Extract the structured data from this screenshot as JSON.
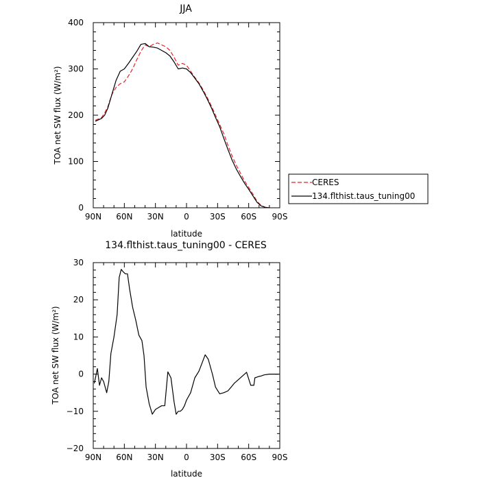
{
  "chart_data": [
    {
      "type": "line",
      "title": "JJA",
      "xlabel": "latitude",
      "ylabel": "TOA net SW flux (W/m²)",
      "xlim": [
        90,
        -90
      ],
      "ylim": [
        0,
        400
      ],
      "x_ticks": [
        90,
        60,
        30,
        0,
        -30,
        -60,
        -90
      ],
      "x_tick_labels": [
        "90N",
        "60N",
        "30N",
        "0",
        "30S",
        "60S",
        "90S"
      ],
      "y_ticks": [
        0,
        100,
        200,
        300,
        400
      ],
      "y_tick_labels": [
        "0",
        "100",
        "200",
        "300",
        "400"
      ],
      "legend_position": "right, outside plot",
      "series": [
        {
          "name": "CERES",
          "color": "#e8222a",
          "dash": "dashed",
          "x": [
            88,
            85,
            82,
            79,
            76,
            72,
            68,
            64,
            60,
            56,
            52,
            48,
            44,
            40,
            36,
            32,
            28,
            24,
            20,
            16,
            12,
            8,
            4,
            0,
            -4,
            -8,
            -12,
            -16,
            -20,
            -24,
            -28,
            -32,
            -36,
            -40,
            -44,
            -48,
            -52,
            -56,
            -60,
            -64,
            -68,
            -72,
            -76,
            -80
          ],
          "y": [
            189,
            192,
            195,
            205,
            218,
            245,
            260,
            268,
            272,
            285,
            300,
            320,
            338,
            352,
            348,
            353,
            356,
            352,
            348,
            340,
            325,
            308,
            312,
            308,
            295,
            282,
            270,
            255,
            238,
            220,
            200,
            180,
            160,
            135,
            112,
            92,
            75,
            58,
            44,
            30,
            14,
            5,
            1,
            0
          ]
        },
        {
          "name": "134.flthist.taus_tuning00",
          "color": "#000000",
          "dash": "solid",
          "x": [
            88,
            85,
            82,
            79,
            76,
            72,
            68,
            64,
            60,
            56,
            52,
            48,
            44,
            40,
            36,
            32,
            28,
            24,
            20,
            16,
            12,
            8,
            4,
            0,
            -4,
            -8,
            -12,
            -16,
            -20,
            -24,
            -28,
            -32,
            -36,
            -40,
            -44,
            -48,
            -52,
            -56,
            -60,
            -64,
            -68,
            -72,
            -76,
            -80
          ],
          "y": [
            187,
            190,
            193,
            200,
            215,
            245,
            275,
            295,
            300,
            312,
            325,
            338,
            353,
            355,
            348,
            347,
            345,
            340,
            335,
            328,
            315,
            300,
            302,
            300,
            292,
            280,
            268,
            252,
            235,
            216,
            195,
            175,
            150,
            126,
            103,
            84,
            68,
            53,
            40,
            26,
            12,
            4,
            1,
            0
          ]
        }
      ]
    },
    {
      "type": "line",
      "title": "134.flthist.taus_tuning00 - CERES",
      "xlabel": "latitude",
      "ylabel": "TOA net SW flux (W/m²)",
      "xlim": [
        90,
        -90
      ],
      "ylim": [
        -20,
        30
      ],
      "x_ticks": [
        90,
        60,
        30,
        0,
        -30,
        -60,
        -90
      ],
      "x_tick_labels": [
        "90N",
        "60N",
        "30N",
        "0",
        "30S",
        "60S",
        "90S"
      ],
      "y_ticks": [
        -20,
        -10,
        0,
        10,
        20,
        30
      ],
      "y_tick_labels": [
        "−20",
        "−10",
        "0",
        "10",
        "20",
        "30"
      ],
      "series": [
        {
          "color": "#000000",
          "x": [
            89,
            86,
            84,
            82,
            80,
            77,
            75,
            73,
            70,
            67,
            65,
            63,
            61,
            59,
            57,
            55,
            52,
            49,
            46,
            43,
            41,
            39,
            36,
            33,
            30,
            27,
            24,
            21,
            18,
            15,
            12,
            10,
            8,
            6,
            4,
            2,
            0,
            -4,
            -8,
            -12,
            -15,
            -18,
            -21,
            -25,
            -28,
            -32,
            -36,
            -40,
            -43,
            -46,
            -50,
            -54,
            -58,
            -62,
            -65,
            -66,
            -68,
            -70,
            -72,
            -75,
            -80,
            -85,
            -89
          ],
          "y": [
            -2.5,
            1.5,
            -3,
            -1,
            -2,
            -5,
            -2,
            5.5,
            10,
            16,
            26,
            28.2,
            27.5,
            27,
            27,
            23,
            18,
            14.5,
            10.5,
            9,
            5,
            -3.5,
            -8,
            -10.8,
            -9.5,
            -9,
            -8.5,
            -8.5,
            0.6,
            -1,
            -7.5,
            -10.8,
            -10,
            -10,
            -9.5,
            -8.5,
            -7,
            -5,
            -1,
            0.8,
            3,
            5.2,
            4,
            0,
            -3.5,
            -5.3,
            -5,
            -4.5,
            -3.5,
            -2.5,
            -1.5,
            -0.5,
            0.5,
            -3,
            -3,
            -1,
            -0.8,
            -0.6,
            -0.5,
            -0.2,
            0,
            0,
            0
          ]
        }
      ]
    }
  ]
}
